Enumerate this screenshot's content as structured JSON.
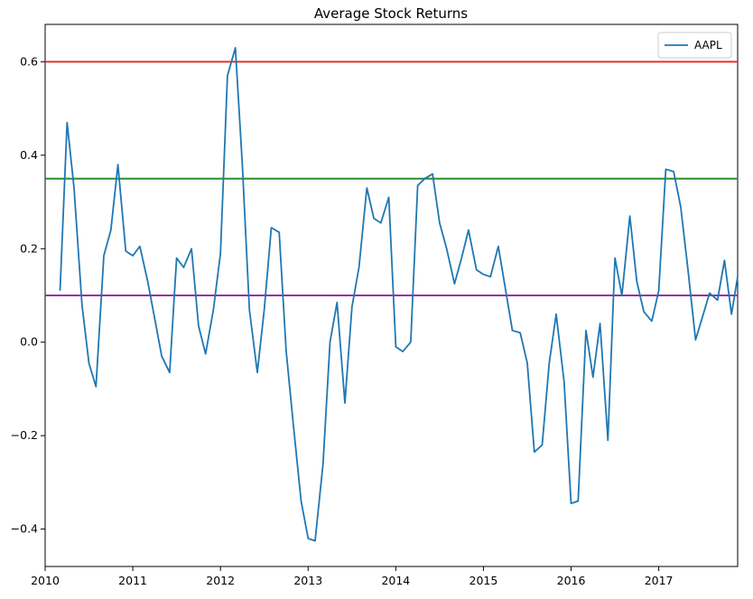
{
  "chart_data": {
    "type": "line",
    "title": "Average Stock Returns",
    "xlabel": "",
    "ylabel": "",
    "xlim": [
      2010.0,
      2017.9
    ],
    "ylim": [
      -0.48,
      0.68
    ],
    "x_ticks": [
      "2010",
      "2011",
      "2012",
      "2013",
      "2014",
      "2015",
      "2016",
      "2017"
    ],
    "y_ticks": [
      "0.6",
      "0.4",
      "0.2",
      "0.0",
      "−0.2",
      "−0.4"
    ],
    "y_tick_values": [
      0.6,
      0.4,
      0.2,
      0.0,
      -0.2,
      -0.4
    ],
    "grid": false,
    "legend_position": "top-right",
    "series": [
      {
        "name": "AAPL",
        "color": "#1f77b4",
        "x": [
          2010.17,
          2010.25,
          2010.33,
          2010.42,
          2010.5,
          2010.58,
          2010.67,
          2010.75,
          2010.83,
          2010.92,
          2011.0,
          2011.08,
          2011.17,
          2011.25,
          2011.33,
          2011.42,
          2011.5,
          2011.58,
          2011.67,
          2011.75,
          2011.83,
          2011.92,
          2012.0,
          2012.08,
          2012.17,
          2012.25,
          2012.33,
          2012.42,
          2012.5,
          2012.58,
          2012.67,
          2012.75,
          2012.83,
          2012.92,
          2013.0,
          2013.08,
          2013.17,
          2013.25,
          2013.33,
          2013.42,
          2013.5,
          2013.58,
          2013.67,
          2013.75,
          2013.83,
          2013.92,
          2014.0,
          2014.08,
          2014.17,
          2014.25,
          2014.33,
          2014.42,
          2014.5,
          2014.58,
          2014.67,
          2014.75,
          2014.83,
          2014.92,
          2015.0,
          2015.08,
          2015.17,
          2015.25,
          2015.33,
          2015.42,
          2015.5,
          2015.58,
          2015.67,
          2015.75,
          2015.83,
          2015.92,
          2016.0,
          2016.08,
          2016.17,
          2016.25,
          2016.33,
          2016.42,
          2016.5,
          2016.58,
          2016.67,
          2016.75,
          2016.83,
          2016.92,
          2017.0,
          2017.08,
          2017.17,
          2017.25,
          2017.33,
          2017.42,
          2017.5,
          2017.58,
          2017.67,
          2017.75,
          2017.83,
          2017.9
        ],
        "values": [
          0.11,
          0.47,
          0.33,
          0.08,
          -0.045,
          -0.095,
          0.185,
          0.24,
          0.38,
          0.195,
          0.185,
          0.205,
          0.13,
          0.05,
          -0.03,
          -0.065,
          0.18,
          0.16,
          0.2,
          0.035,
          -0.025,
          0.07,
          0.19,
          0.57,
          0.63,
          0.38,
          0.07,
          -0.065,
          0.07,
          0.245,
          0.235,
          -0.02,
          -0.175,
          -0.34,
          -0.42,
          -0.425,
          -0.26,
          0.0,
          0.085,
          -0.13,
          0.075,
          0.16,
          0.33,
          0.265,
          0.255,
          0.31,
          -0.01,
          -0.02,
          0.0,
          0.335,
          0.35,
          0.36,
          0.255,
          0.2,
          0.125,
          0.18,
          0.24,
          0.155,
          0.145,
          0.14,
          0.205,
          0.115,
          0.025,
          0.02,
          -0.045,
          -0.235,
          -0.22,
          -0.045,
          0.06,
          -0.085,
          -0.345,
          -0.34,
          0.025,
          -0.075,
          0.04,
          -0.21,
          0.18,
          0.1,
          0.27,
          0.13,
          0.065,
          0.045,
          0.11,
          0.37,
          0.365,
          0.29,
          0.16,
          0.005,
          0.055,
          0.105,
          0.09,
          0.175,
          0.06,
          0.14
        ]
      }
    ],
    "reference_lines": [
      {
        "y": 0.6,
        "color": "#e8302a"
      },
      {
        "y": 0.35,
        "color": "#2a8f2a"
      },
      {
        "y": 0.1,
        "color": "#9b2ea8"
      }
    ]
  }
}
